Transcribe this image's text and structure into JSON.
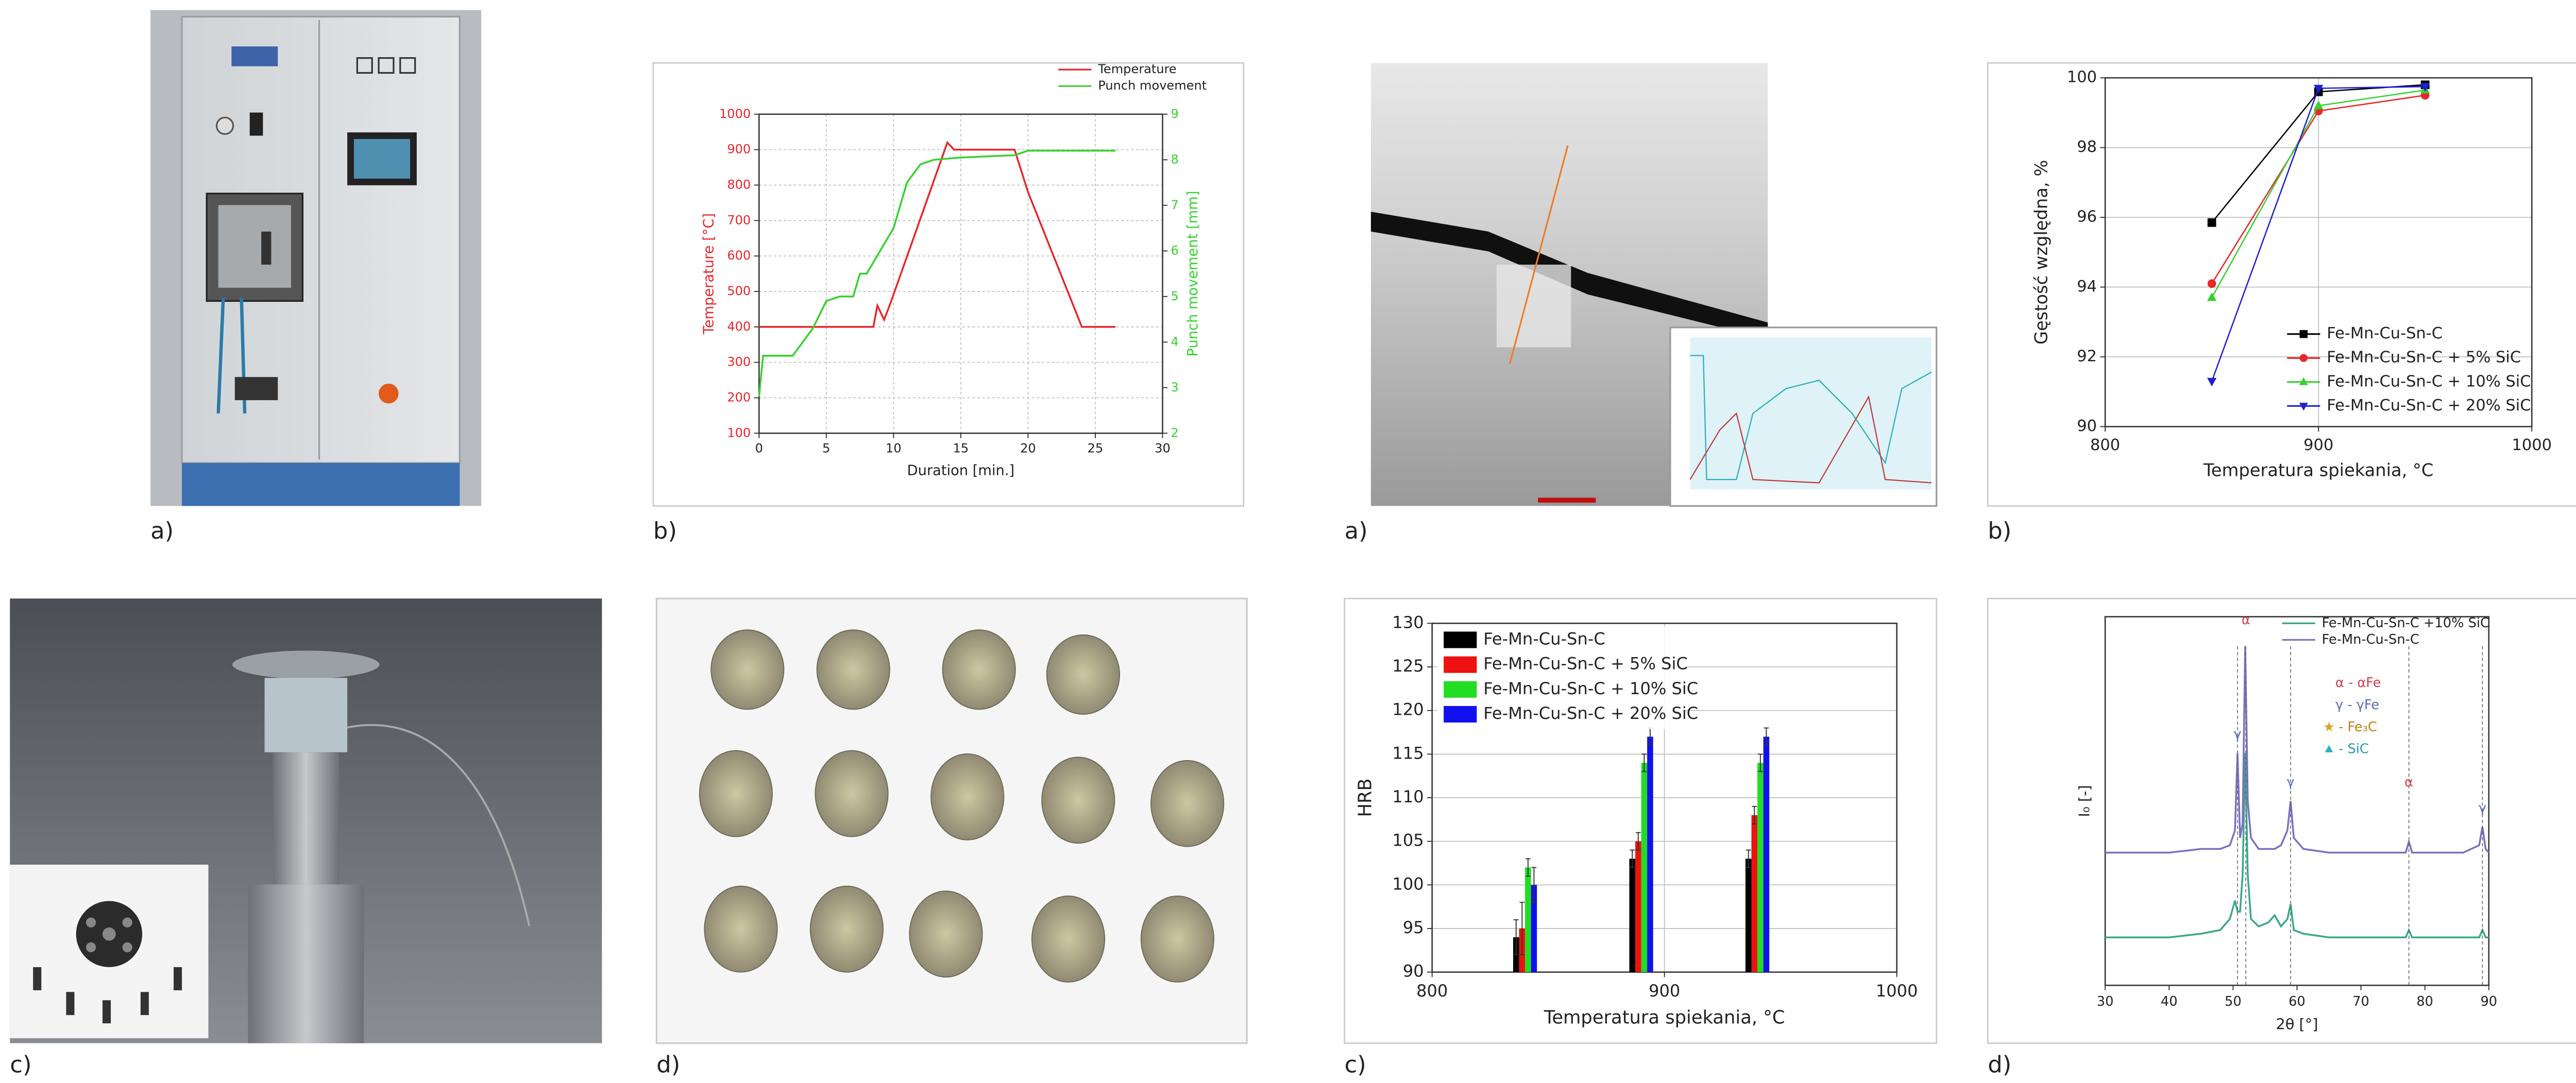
{
  "panels": [
    "a)",
    "b)",
    "a)",
    "b)",
    "c)",
    "d)",
    "c)",
    "d)"
  ],
  "chart_data": [
    {
      "type": "line",
      "xlabel": "Duration [min.]",
      "ylabel": "Temperature [°C]",
      "y2label": "Punch movement [mm]",
      "xlim": [
        0,
        30
      ],
      "xticks": [
        0,
        5,
        10,
        15,
        20,
        25,
        30
      ],
      "ylim": [
        100,
        1000
      ],
      "yticks": [
        100,
        200,
        300,
        400,
        500,
        600,
        700,
        800,
        900,
        1000
      ],
      "y2lim": [
        2,
        9
      ],
      "y2ticks": [
        2,
        3,
        4,
        5,
        6,
        7,
        8,
        9
      ],
      "grid": "dotted",
      "legend": "top",
      "series": [
        {
          "name": "Temperature",
          "color": "#e8262b",
          "x": [
            0,
            8.5,
            8.8,
            9.3,
            9.8,
            14,
            14.5,
            19,
            20,
            24,
            26.5
          ],
          "values": [
            400,
            400,
            460,
            420,
            470,
            920,
            900,
            900,
            780,
            400,
            400
          ]
        },
        {
          "name": "Punch movement",
          "color": "#37d12f",
          "axis": "y2",
          "x": [
            0,
            0.3,
            2.5,
            4,
            5,
            6,
            7,
            7.5,
            8,
            9,
            10,
            11,
            12,
            13,
            15,
            19,
            20,
            26.5
          ],
          "values": [
            2.8,
            3.7,
            3.7,
            4.3,
            4.9,
            5.0,
            5.0,
            5.5,
            5.5,
            6.0,
            6.5,
            7.5,
            7.9,
            8.0,
            8.05,
            8.1,
            8.2,
            8.2
          ]
        }
      ]
    },
    {
      "type": "line",
      "xlabel": "Temperatura spiekania, °C",
      "ylabel": "Gęstość względna, %",
      "x": [
        850,
        900,
        950
      ],
      "xlim": [
        800,
        1000
      ],
      "xticks": [
        800,
        900,
        1000
      ],
      "ylim": [
        90,
        100
      ],
      "yticks": [
        90,
        92,
        94,
        96,
        98,
        100
      ],
      "grid": true,
      "legend": "lower right",
      "series": [
        {
          "name": "Fe-Mn-Cu-Sn-C",
          "color": "#000000",
          "marker": "square",
          "values": [
            95.85,
            99.6,
            99.8
          ]
        },
        {
          "name": "Fe-Mn-Cu-Sn-C + 5% SiC",
          "color": "#e8262b",
          "marker": "circle",
          "values": [
            94.1,
            99.05,
            99.5
          ]
        },
        {
          "name": "Fe-Mn-Cu-Sn-C + 10% SiC",
          "color": "#37d12f",
          "marker": "triangle-up",
          "values": [
            93.7,
            99.2,
            99.65
          ]
        },
        {
          "name": "Fe-Mn-Cu-Sn-C + 20% SiC",
          "color": "#2020d8",
          "marker": "triangle-down",
          "values": [
            91.3,
            99.7,
            99.75
          ]
        }
      ]
    },
    {
      "type": "bar",
      "xlabel": "Temperatura spiekania, °C",
      "ylabel": "HRB",
      "x": [
        840,
        890,
        940
      ],
      "xlim": [
        800,
        1000
      ],
      "xticks": [
        800,
        900,
        1000
      ],
      "ylim": [
        90,
        130
      ],
      "yticks": [
        90,
        95,
        100,
        105,
        110,
        115,
        120,
        125,
        130
      ],
      "grid": true,
      "legend": "upper left",
      "series": [
        {
          "name": "Fe-Mn-Cu-Sn-C",
          "color": "#000000",
          "values": [
            94,
            103,
            103
          ],
          "errors": [
            2,
            1,
            1
          ]
        },
        {
          "name": "Fe-Mn-Cu-Sn-C + 5% SiC",
          "color": "#ee1111",
          "values": [
            95,
            105,
            108
          ],
          "errors": [
            3,
            1,
            1
          ]
        },
        {
          "name": "Fe-Mn-Cu-Sn-C + 10% SiC",
          "color": "#22dd22",
          "values": [
            102,
            114,
            114
          ],
          "errors": [
            1,
            1,
            1
          ]
        },
        {
          "name": "Fe-Mn-Cu-Sn-C + 20% SiC",
          "color": "#1111ee",
          "values": [
            100,
            117,
            117
          ],
          "errors": [
            2,
            1,
            1
          ]
        }
      ]
    },
    {
      "type": "line",
      "xlabel": "2θ [°]",
      "ylabel": "I₀ [-]",
      "x": [
        30,
        35,
        40,
        45,
        48,
        49.5,
        50.3,
        50.7,
        51.1,
        51.5,
        51.9,
        52.3,
        52.8,
        54,
        55.5,
        56.5,
        57.5,
        58.5,
        59,
        59.5,
        61,
        65,
        70,
        75,
        77,
        77.5,
        78,
        82,
        86,
        88.5,
        89,
        89.5,
        90
      ],
      "xlim": [
        30,
        90
      ],
      "xticks": [
        30,
        40,
        50,
        60,
        70,
        80,
        90
      ],
      "ylim": [
        0,
        100
      ],
      "legend": "top",
      "annotations": [
        "α",
        "γ",
        "γ",
        "α",
        "γ",
        "α - αFe",
        "γ - γFe",
        "- Fe₃C",
        "- SiC"
      ],
      "series": [
        {
          "name": "Fe-Mn-Cu-Sn-C +10% SiC",
          "color": "#3aa88a",
          "values": [
            13,
            13,
            13,
            14,
            15,
            18,
            23,
            20,
            20,
            30,
            63,
            30,
            18,
            16,
            17,
            19,
            16,
            18,
            22,
            15,
            14,
            13,
            13,
            13,
            13,
            15,
            13,
            13,
            13,
            13,
            15,
            13,
            13
          ]
        },
        {
          "name": "Fe-Mn-Cu-Sn-C",
          "color": "#7d6fbf",
          "values": [
            36,
            36,
            36,
            37,
            37,
            38,
            42,
            63,
            40,
            44,
            92,
            50,
            40,
            37,
            37,
            37,
            38,
            42,
            50,
            40,
            37,
            36,
            36,
            36,
            36,
            39,
            36,
            36,
            36,
            38,
            43,
            37,
            36
          ]
        }
      ]
    }
  ]
}
